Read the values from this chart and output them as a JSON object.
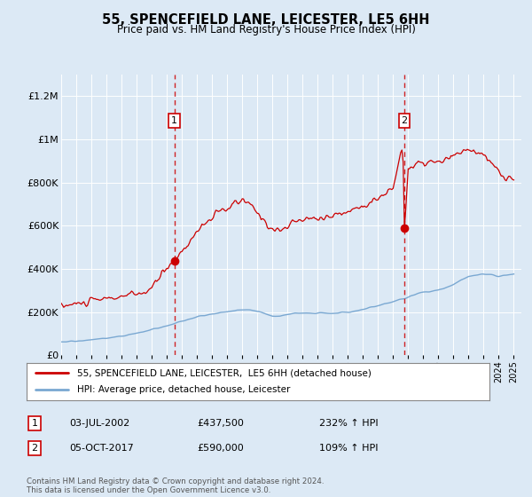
{
  "title": "55, SPENCEFIELD LANE, LEICESTER, LE5 6HH",
  "subtitle": "Price paid vs. HM Land Registry's House Price Index (HPI)",
  "bg_color": "#dce9f5",
  "red_line_color": "#cc0000",
  "blue_line_color": "#7aa8d2",
  "sale1_x": 2002.5,
  "sale1_y": 437500,
  "sale2_x": 2017.75,
  "sale2_y": 590000,
  "yticks": [
    0,
    200000,
    400000,
    600000,
    800000,
    1000000,
    1200000
  ],
  "ytick_labels": [
    "£0",
    "£200K",
    "£400K",
    "£600K",
    "£800K",
    "£1M",
    "£1.2M"
  ],
  "xlim_low": 1995,
  "xlim_high": 2025.5,
  "ylim_low": 0,
  "ylim_high": 1300000,
  "legend_line1": "55, SPENCEFIELD LANE, LEICESTER,  LE5 6HH (detached house)",
  "legend_line2": "HPI: Average price, detached house, Leicester",
  "ann1_label": "1",
  "ann1_date": "03-JUL-2002",
  "ann1_price": "£437,500",
  "ann1_hpi": "232% ↑ HPI",
  "ann2_label": "2",
  "ann2_date": "05-OCT-2017",
  "ann2_price": "£590,000",
  "ann2_hpi": "109% ↑ HPI",
  "footer": "Contains HM Land Registry data © Crown copyright and database right 2024.\nThis data is licensed under the Open Government Licence v3.0."
}
